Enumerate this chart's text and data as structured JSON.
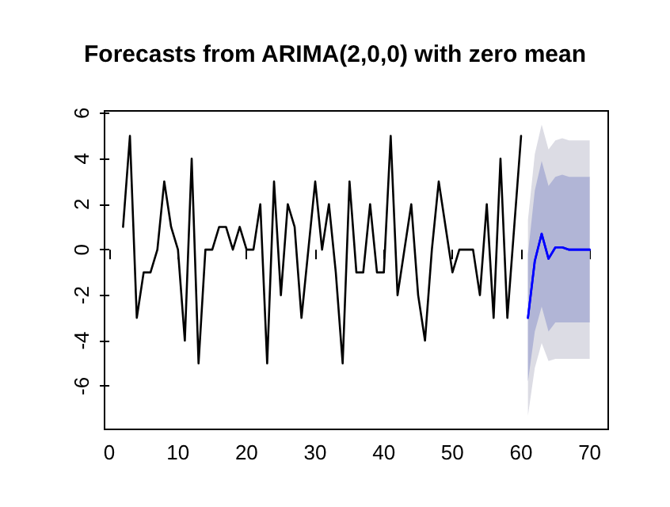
{
  "chart_data": {
    "type": "line",
    "title": "Forecasts from ARIMA(2,0,0) with zero mean",
    "xlim": [
      -0.7,
      72.7
    ],
    "xticks": [
      0,
      10,
      20,
      30,
      40,
      50,
      60,
      70
    ],
    "ylim": [
      -7.9,
      6.1
    ],
    "yticks": [
      -6,
      -4,
      -2,
      0,
      2,
      4,
      6
    ],
    "grid": false,
    "marker": "none",
    "line_style": "solid",
    "series": [
      {
        "color": "#000000",
        "x": [
          2,
          3,
          4,
          5,
          6,
          7,
          8,
          9,
          10,
          11,
          12,
          13,
          14,
          15,
          16,
          17,
          18,
          19,
          20,
          21,
          22,
          23,
          24,
          25,
          26,
          27,
          28,
          29,
          30,
          31,
          32,
          33,
          34,
          35,
          36,
          37,
          38,
          39,
          40,
          41,
          42,
          43,
          44,
          45,
          46,
          47,
          48,
          49,
          50,
          51,
          52,
          53,
          54,
          55,
          56,
          57,
          58,
          59,
          60
        ],
        "values": [
          1,
          5,
          -3,
          -1,
          -1,
          0,
          3,
          1,
          0,
          -4,
          4,
          -5,
          0,
          0,
          1,
          1,
          0,
          1,
          0,
          0,
          2,
          -5,
          3,
          -2,
          2,
          1,
          -3,
          0,
          3,
          0,
          2,
          -1,
          -5,
          3,
          -1,
          -1,
          2,
          -1,
          -1,
          5,
          -2,
          0,
          2,
          -2,
          -4,
          0,
          3,
          1,
          -1,
          0,
          0,
          0,
          -2,
          2,
          -3,
          4,
          -3,
          1,
          5
        ]
      },
      {
        "color": "#0000ff",
        "x": [
          61,
          62,
          63,
          64,
          65,
          66,
          67,
          68,
          69,
          70
        ],
        "values": [
          -3,
          -0.5,
          0.7,
          -0.4,
          0.1,
          0.1,
          0,
          0,
          0,
          0
        ],
        "lower": [
          -7.3,
          -5.2,
          -4.1,
          -4.9,
          -4.8,
          -4.8,
          -4.8,
          -4.8,
          -4.8,
          -4.8
        ],
        "upper": [
          1.3,
          4.2,
          5.5,
          4.4,
          4.8,
          4.9,
          4.8,
          4.8,
          4.8,
          4.8
        ]
      },
      {
        "color": "#0000ff",
        "x": [
          61,
          62,
          63,
          64,
          65,
          66,
          67,
          68,
          69,
          70
        ],
        "values": [
          -3,
          -0.5,
          0.7,
          -0.4,
          0.1,
          0.1,
          0,
          0,
          0,
          0
        ],
        "lower": [
          -5.8,
          -3.6,
          -2.5,
          -3.6,
          -3.2,
          -3.2,
          -3.2,
          -3.2,
          -3.2,
          -3.2
        ],
        "upper": [
          -0.2,
          2.6,
          3.9,
          2.8,
          3.2,
          3.3,
          3.2,
          3.2,
          3.2,
          3.2
        ]
      }
    ]
  }
}
